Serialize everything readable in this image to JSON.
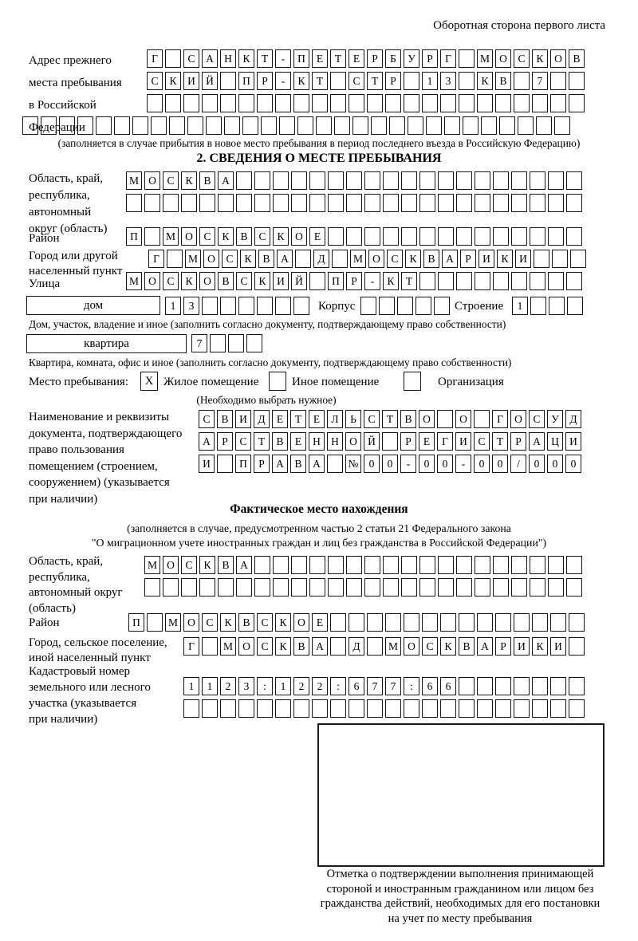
{
  "header": {
    "note": "Оборотная сторона первого листа"
  },
  "prev_address": {
    "label": "Адрес прежнего\nместа пребывания\nв Российской\nФедерации",
    "row1": "Г САНКТ-ПЕТЕРБУРГ МОСКОВ",
    "row2": "СКИЙ ПР-КТ СТР 13 КВ 7  ",
    "row3": "                        ",
    "row4": "                              ",
    "note": "(заполняется в случае прибытия в новое место пребывания в период последнего въезда в Российскую Федерацию)"
  },
  "section2": {
    "title": "2. СВЕДЕНИЯ О МЕСТЕ ПРЕБЫВАНИЯ",
    "region_label": "Область, край,\nреспублика,\nавтономный\nокруг (область)",
    "region_row1": "МОСКВА                   ",
    "region_row2": "                         ",
    "district_label": "Район",
    "district_row": "П МОСКВСКОЕ              ",
    "city_label": "Город или другой\nнаселенный пункт",
    "city_row": "Г МОСКВА Д МОСКВАРИКИ   ",
    "street_label": "Улица",
    "street_row": "МОСКОВСКИЙ ПР-КТ         ",
    "house_box_label": "дом",
    "house_cells": "13      ",
    "korpus_label": "Корпус",
    "korpus_cells": "     ",
    "stroenie_label": "Строение",
    "stroenie_cells": "1   ",
    "house_note": "Дом, участок, владение и иное (заполнить согласно документу, подтверждающему право собственности)",
    "apartment_box_label": "квартира",
    "apartment_cells": "7   ",
    "apartment_note": "Квартира, комната, офис и иное (заполнить согласно документу, подтверждающему право собственности)",
    "stay_label": "Место пребывания:",
    "stay_options": [
      {
        "label": "Жилое помещение",
        "checked": "X"
      },
      {
        "label": "Иное помещение",
        "checked": ""
      },
      {
        "label": "Организация",
        "checked": ""
      }
    ],
    "stay_note": "(Необходимо выбрать нужное)",
    "doc_label": "Наименование и реквизиты\nдокумента, подтверждающего\nправо пользования\nпомещением (строением,\nсооружением) (указывается\nпри наличии)",
    "doc_row1": "СВИДЕТЕЛЬСТВО О ГОСУД",
    "doc_row2": "АРСТВЕННОЙ РЕГИСТРАЦИ",
    "doc_row3": "И ПРАВА №00-00-00/000"
  },
  "actual": {
    "title": "Фактическое место нахождения",
    "note1": "(заполняется в случае, предусмотренном частью 2 статьи 21 Федерального закона",
    "note2": "\"О миграционном учете иностранных граждан и лиц без гражданства в Российской Федерации\")",
    "region_label": "Область, край,\nреспублика,\nавтономный округ\n(область)",
    "region_row1": "МОСКВА                  ",
    "region_row2": "                        ",
    "district_label": "Район",
    "district_row": "П МОСКВСКОЕ              ",
    "city_label": "Город, сельское поселение,\nиной населенный пункт",
    "city_row": "Г МОСКВА Д МОСКВАРИКИ ",
    "cadastre_label": "Кадастровый номер\nземельного или лесного\nучастка (указывается\nпри наличии)",
    "cadastre_row1": "1123:122:677:66       ",
    "cadastre_row2": "                      "
  },
  "confirmation": {
    "caption": "Отметка о подтверждении выполнения принимающей\nстороной и иностранным гражданином или лицом без\nгражданства действий, необходимых для его постановки\nна учет по месту пребывания"
  }
}
